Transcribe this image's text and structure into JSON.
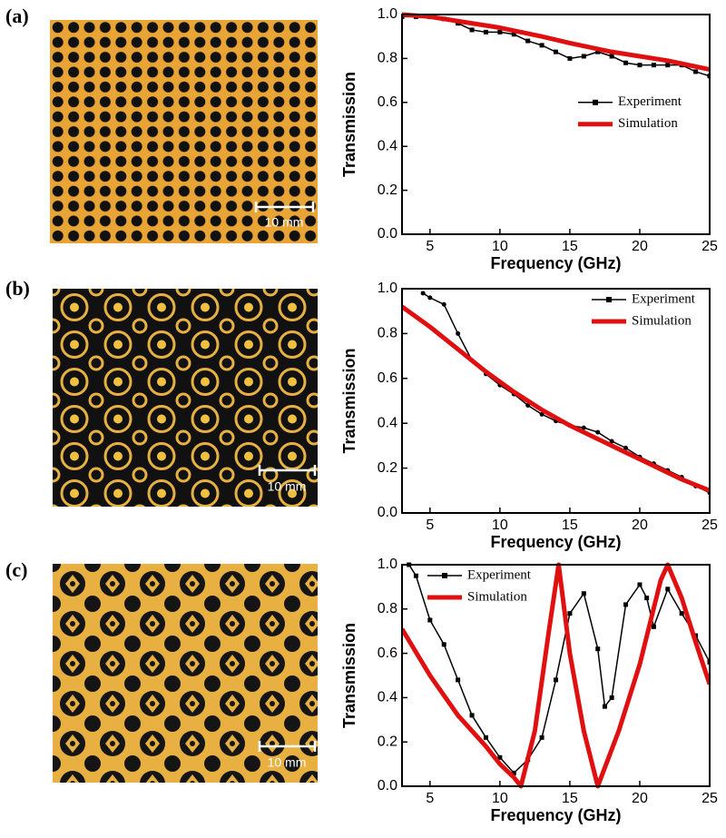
{
  "panels": [
    {
      "label": "(a)",
      "scale_bar": "10 mm"
    },
    {
      "label": "(b)",
      "scale_bar": "10 mm"
    },
    {
      "label": "(c)",
      "scale_bar": "10 mm"
    }
  ],
  "chart_data": [
    {
      "type": "line",
      "xlabel": "Frequency (GHz)",
      "ylabel": "Transmission",
      "xlim": [
        3,
        25
      ],
      "ylim": [
        0,
        1
      ],
      "xticks": [
        5,
        10,
        15,
        20,
        25
      ],
      "yticks": [
        {
          "value": 0,
          "label": "0.0"
        },
        0.2,
        0.4,
        0.6,
        0.8,
        {
          "value": 1,
          "label": "1.0"
        }
      ],
      "legend": "center right",
      "series": [
        {
          "name": "Experiment",
          "color": "#000000",
          "marker": "square",
          "x": [
            3,
            4,
            5,
            6,
            7,
            8,
            9,
            10,
            11,
            12,
            13,
            14,
            15,
            16,
            17,
            18,
            19,
            20,
            21,
            22,
            23,
            24,
            25
          ],
          "values": [
            0.99,
            0.99,
            0.99,
            0.98,
            0.96,
            0.93,
            0.92,
            0.92,
            0.91,
            0.88,
            0.86,
            0.83,
            0.8,
            0.81,
            0.83,
            0.81,
            0.78,
            0.77,
            0.77,
            0.77,
            0.77,
            0.74,
            0.72
          ]
        },
        {
          "name": "Simulation",
          "color": "#e01010",
          "x": [
            3,
            5,
            7,
            10,
            13,
            15,
            18,
            20,
            22,
            25
          ],
          "values": [
            1.0,
            0.99,
            0.97,
            0.94,
            0.9,
            0.87,
            0.83,
            0.81,
            0.79,
            0.75
          ]
        }
      ]
    },
    {
      "type": "line",
      "xlabel": "Frequency (GHz)",
      "ylabel": "Transmission",
      "xlim": [
        3,
        25
      ],
      "ylim": [
        0,
        1
      ],
      "xticks": [
        5,
        10,
        15,
        20,
        25
      ],
      "yticks": [
        {
          "value": 0,
          "label": "0.0"
        },
        0.2,
        0.4,
        0.6,
        0.8,
        {
          "value": 1,
          "label": "1.0"
        }
      ],
      "legend": "upper right",
      "series": [
        {
          "name": "Experiment",
          "color": "#000000",
          "marker": "circle",
          "x": [
            4.5,
            5,
            6,
            7,
            8,
            9,
            10,
            11,
            12,
            13,
            14,
            15,
            16,
            17,
            18,
            19,
            20,
            21,
            22,
            23,
            24,
            25
          ],
          "values": [
            0.98,
            0.96,
            0.93,
            0.8,
            0.68,
            0.62,
            0.57,
            0.53,
            0.48,
            0.44,
            0.41,
            0.39,
            0.38,
            0.36,
            0.32,
            0.29,
            0.25,
            0.22,
            0.19,
            0.16,
            0.12,
            0.09
          ]
        },
        {
          "name": "Simulation",
          "color": "#e01010",
          "x": [
            3,
            5,
            7,
            9,
            11,
            13,
            15,
            17,
            19,
            21,
            23,
            25
          ],
          "values": [
            0.92,
            0.83,
            0.73,
            0.63,
            0.54,
            0.46,
            0.39,
            0.33,
            0.27,
            0.21,
            0.15,
            0.1
          ]
        }
      ]
    },
    {
      "type": "line",
      "xlabel": "Frequency (GHz)",
      "ylabel": "Transmission",
      "xlim": [
        3,
        25
      ],
      "ylim": [
        0,
        1
      ],
      "xticks": [
        5,
        10,
        15,
        20,
        25
      ],
      "yticks": [
        {
          "value": 0,
          "label": "0.0"
        },
        0.2,
        0.4,
        0.6,
        0.8,
        {
          "value": 1,
          "label": "1.0"
        }
      ],
      "legend": "upper left",
      "series": [
        {
          "name": "Experiment",
          "color": "#000000",
          "marker": "square",
          "x": [
            3.5,
            4,
            5,
            6,
            7,
            8,
            9,
            10,
            11,
            12,
            13,
            14,
            15,
            16,
            17,
            17.5,
            18,
            19,
            20,
            20.5,
            21,
            22,
            23,
            24,
            25
          ],
          "values": [
            1.0,
            0.95,
            0.75,
            0.64,
            0.48,
            0.32,
            0.22,
            0.13,
            0.06,
            0.12,
            0.22,
            0.48,
            0.78,
            0.87,
            0.62,
            0.36,
            0.4,
            0.82,
            0.91,
            0.85,
            0.72,
            0.89,
            0.78,
            0.68,
            0.56
          ]
        },
        {
          "name": "Simulation",
          "color": "#e01010",
          "x": [
            3,
            5,
            7,
            9,
            10,
            11,
            11.5,
            12.5,
            13.5,
            14.2,
            15,
            16,
            17,
            18.5,
            20,
            21.5,
            22,
            23,
            24,
            25
          ],
          "values": [
            0.71,
            0.5,
            0.32,
            0.18,
            0.1,
            0.04,
            0.0,
            0.25,
            0.7,
            1.0,
            0.6,
            0.25,
            0.0,
            0.25,
            0.55,
            0.93,
            1.0,
            0.85,
            0.65,
            0.46
          ]
        }
      ]
    }
  ]
}
